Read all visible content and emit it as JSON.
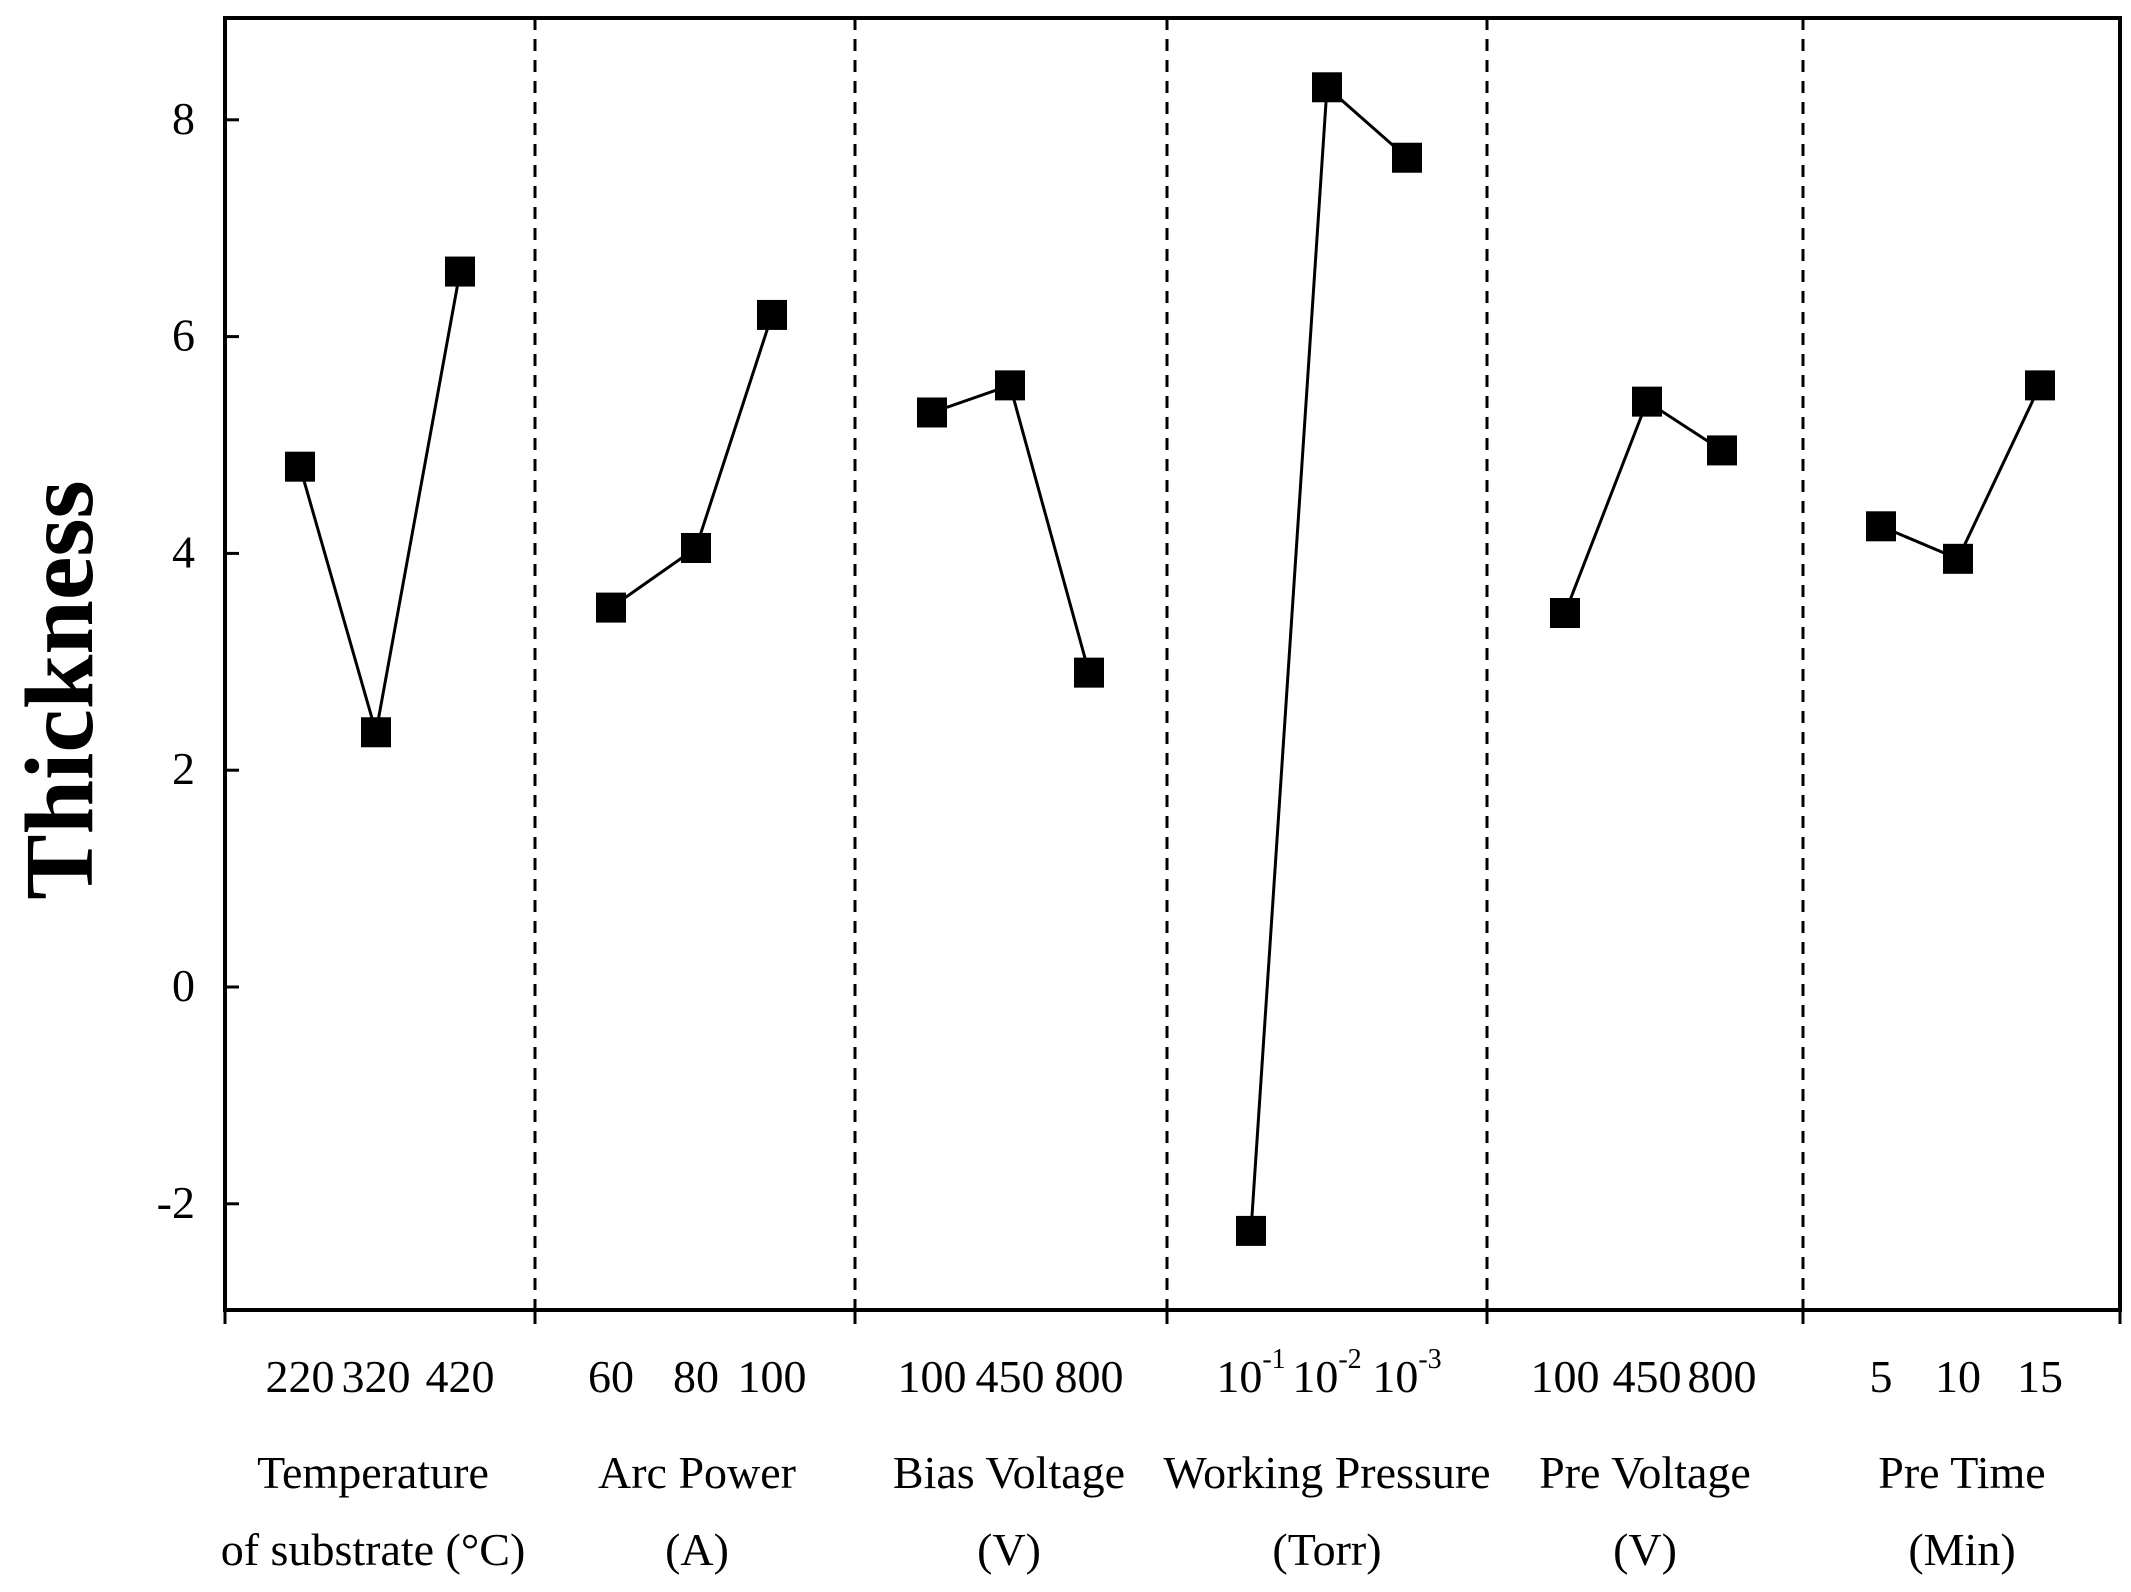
{
  "chart_data": {
    "type": "line",
    "ylabel": "Thickness",
    "ylim": [
      -3,
      9
    ],
    "yticks": [
      "-2",
      "0",
      "2",
      "4",
      "6",
      "8"
    ],
    "yticks_values": [
      -2,
      0,
      2,
      4,
      6,
      8
    ],
    "grid": false,
    "legend": "none",
    "marker": "square",
    "groups": [
      {
        "label_line1": "Temperature",
        "label_line2": "of substrate (°C)",
        "ticks": [
          {
            "text": "220"
          },
          {
            "text": "320"
          },
          {
            "text": "420"
          }
        ],
        "values": [
          4.8,
          2.35,
          6.6
        ]
      },
      {
        "label_line1": "Arc Power",
        "label_line2": "(A)",
        "ticks": [
          {
            "text": "60"
          },
          {
            "text": "80"
          },
          {
            "text": "100"
          }
        ],
        "values": [
          3.5,
          4.05,
          6.2
        ]
      },
      {
        "label_line1": "Bias Voltage",
        "label_line2": "(V)",
        "ticks": [
          {
            "text": "100"
          },
          {
            "text": "450"
          },
          {
            "text": "800"
          }
        ],
        "values": [
          5.3,
          5.55,
          2.9
        ]
      },
      {
        "label_line1": "Working Pressure",
        "label_line2": "(Torr)",
        "ticks": [
          {
            "text": "10",
            "sup": "-1"
          },
          {
            "text": "10",
            "sup": "-2"
          },
          {
            "text": "10",
            "sup": "-3"
          }
        ],
        "values": [
          -2.25,
          8.3,
          7.65
        ]
      },
      {
        "label_line1": "Pre Voltage",
        "label_line2": "(V)",
        "ticks": [
          {
            "text": "100"
          },
          {
            "text": "450"
          },
          {
            "text": "800"
          }
        ],
        "values": [
          3.45,
          5.4,
          4.95
        ]
      },
      {
        "label_line1": "Pre Time",
        "label_line2": "(Min)",
        "ticks": [
          {
            "text": "5"
          },
          {
            "text": "10"
          },
          {
            "text": "15"
          }
        ],
        "values": [
          4.25,
          3.95,
          5.55
        ]
      }
    ]
  }
}
